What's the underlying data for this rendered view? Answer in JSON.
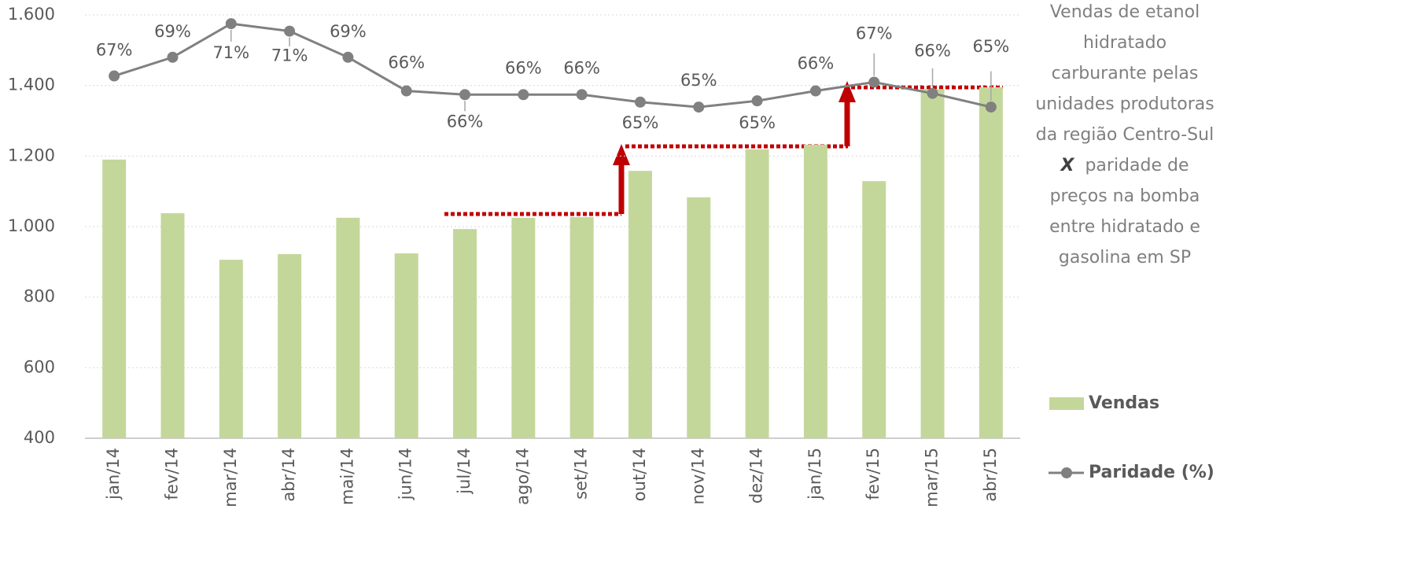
{
  "chart_data": {
    "type": "bar_line",
    "title_top": [
      "Vendas de etanol",
      "hidratado",
      "carburante pelas",
      "unidades produtoras",
      "da região Centro-Sul"
    ],
    "connector": "X",
    "title_bottom": [
      "paridade de",
      "preços na bomba",
      "entre hidratado e",
      "gasolina em SP"
    ],
    "categories": [
      "jan/14",
      "fev/14",
      "mar/14",
      "abr/14",
      "mai/14",
      "jun/14",
      "jul/14",
      "ago/14",
      "set/14",
      "out/14",
      "nov/14",
      "dez/14",
      "jan/15",
      "fev/15",
      "mar/15",
      "abr/15"
    ],
    "series": [
      {
        "name": "Vendas",
        "type": "bar",
        "color": "#c4d79b",
        "values": [
          1190,
          1038,
          906,
          922,
          1025,
          924,
          993,
          1025,
          1027,
          1158,
          1083,
          1219,
          1232,
          1129,
          1390,
          1395
        ]
      },
      {
        "name": "Paridade (%)",
        "type": "line",
        "axis": "y2",
        "color": "#808080",
        "values": [
          67.1,
          68.6,
          71.3,
          70.7,
          68.6,
          65.9,
          65.6,
          65.6,
          65.6,
          65.0,
          64.6,
          65.1,
          65.9,
          66.6,
          65.7,
          64.6
        ],
        "value_labels": [
          "67%",
          "69%",
          "71%",
          "71%",
          "69%",
          "66%",
          "66%",
          "66%",
          "66%",
          "65%",
          "65%",
          "65%",
          "66%",
          "67%",
          "66%",
          "65%"
        ]
      }
    ],
    "ylim": [
      400,
      1600
    ],
    "yticks": [
      {
        "value": 400,
        "label": "400"
      },
      {
        "value": 600,
        "label": "600"
      },
      {
        "value": 800,
        "label": "800"
      },
      {
        "value": 1000,
        "label": "1.000"
      },
      {
        "value": 1200,
        "label": "1.200"
      },
      {
        "value": 1400,
        "label": "1.400"
      },
      {
        "value": 1600,
        "label": "1.600"
      }
    ],
    "y2lim": [
      38,
      72
    ],
    "grid": true
  }
}
